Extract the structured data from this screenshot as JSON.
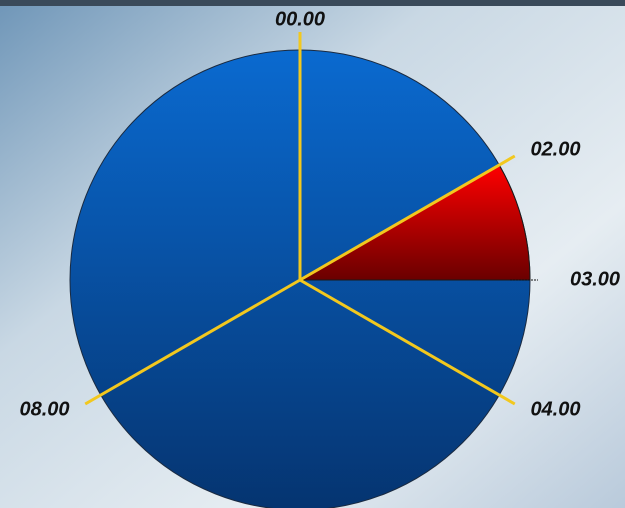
{
  "chart_data": {
    "type": "clock",
    "xlim": [
      0,
      12
    ],
    "xticks": [
      {
        "value": 0,
        "label": "00.00"
      },
      {
        "value": 2,
        "label": "02.00"
      },
      {
        "value": 3,
        "label": "03.00"
      },
      {
        "value": 4,
        "label": "04.00"
      },
      {
        "value": 8,
        "label": "08.00"
      }
    ],
    "hands": [
      0,
      2,
      4,
      8
    ],
    "hand_color": "#f2c81e",
    "color": "#0760bf",
    "segments": [
      {
        "start": 2,
        "end": 3,
        "color": "#e80000"
      }
    ]
  }
}
